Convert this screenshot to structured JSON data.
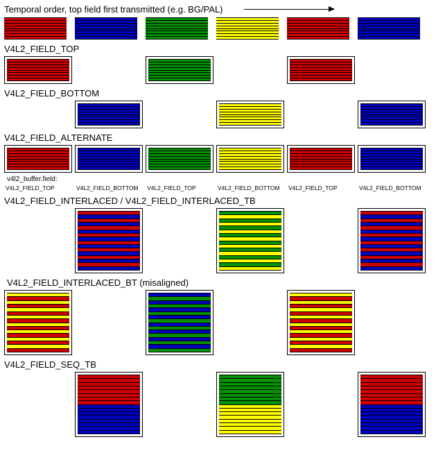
{
  "colors": {
    "red": "#ce0000",
    "blue": "#0000c0",
    "green": "#009000",
    "yellow": "#ffff00"
  },
  "header": {
    "title": "Temporal order, top field first transmitted (e.g. BG/PAL)"
  },
  "temporal": {
    "frames": [
      "red",
      "blue",
      "green",
      "yellow",
      "red",
      "blue"
    ],
    "lines": 8
  },
  "sections": {
    "top": {
      "label": "V4L2_FIELD_TOP",
      "positions": [
        0,
        2,
        4
      ],
      "colors": [
        "red",
        "green",
        "red"
      ],
      "lines": 8
    },
    "bottom": {
      "label": "V4L2_FIELD_BOTTOM",
      "positions": [
        1,
        3,
        5
      ],
      "colors": [
        "blue",
        "yellow",
        "blue"
      ],
      "lines": 8
    },
    "alternate": {
      "label": "V4L2_FIELD_ALTERNATE",
      "frames": [
        "red",
        "blue",
        "green",
        "yellow",
        "red",
        "blue"
      ],
      "lines": 8,
      "buffer_label": "v4l2_buffer.field:",
      "captions": [
        "V4L2_FIELD_TOP",
        "V4L2_FIELD_BOTTOM",
        "V4L2_FIELD_TOP",
        "V4L2_FIELD_BOTTOM",
        "V4L2_FIELD_TOP",
        "V4L2_FIELD_BOTTOM"
      ]
    },
    "interlaced_tb": {
      "label": "V4L2_FIELD_INTERLACED / V4L2_FIELD_INTERLACED_TB",
      "positions": [
        1,
        3,
        5
      ],
      "top_colors": [
        "red",
        "green",
        "red"
      ],
      "bot_colors": [
        "blue",
        "yellow",
        "blue"
      ],
      "lines": 16
    },
    "interlaced_bt": {
      "label": "V4L2_FIELD_INTERLACED_BT (misaligned)",
      "positions": [
        0,
        2,
        4
      ],
      "top_colors": [
        "yellow",
        "blue",
        "yellow"
      ],
      "bot_colors": [
        "red",
        "green",
        "red"
      ],
      "lines": 16
    },
    "seq_tb": {
      "label": "V4L2_FIELD_SEQ_TB",
      "positions": [
        1,
        3,
        5
      ],
      "top_colors": [
        "red",
        "green",
        "red"
      ],
      "bot_colors": [
        "blue",
        "yellow",
        "blue"
      ],
      "lines_each": 8
    }
  }
}
